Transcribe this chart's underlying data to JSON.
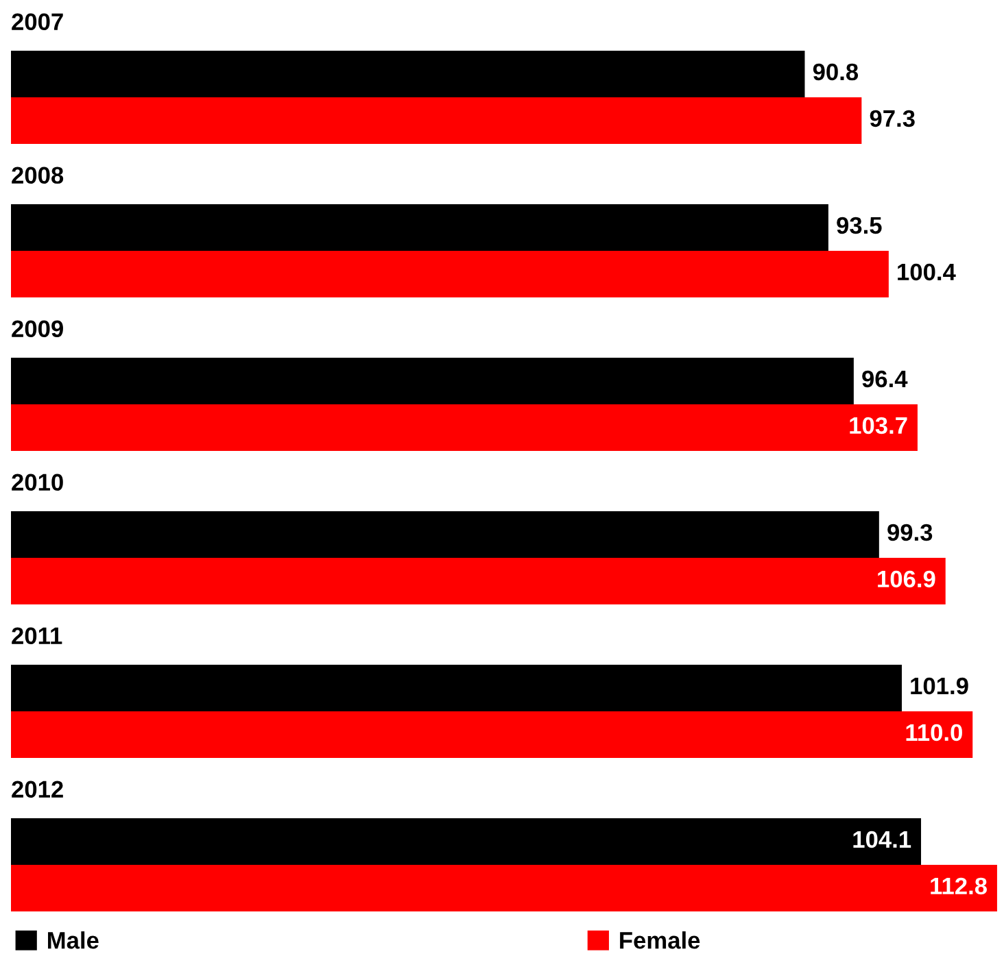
{
  "chart_data": {
    "type": "bar",
    "orientation": "horizontal",
    "categories": [
      "2007",
      "2008",
      "2009",
      "2010",
      "2011",
      "2012"
    ],
    "series": [
      {
        "name": "Male",
        "color": "#000000",
        "values": [
          90.8,
          93.5,
          96.4,
          99.3,
          101.9,
          104.1
        ],
        "value_labels": [
          "90.8",
          "93.5",
          "96.4",
          "99.3",
          "101.9",
          "104.1"
        ]
      },
      {
        "name": "Female",
        "color": "#ff0000",
        "values": [
          97.3,
          100.4,
          103.7,
          106.9,
          110.0,
          112.8
        ],
        "value_labels": [
          "97.3",
          "100.4",
          "103.7",
          "106.9",
          "110.0",
          "112.8"
        ]
      }
    ],
    "legend": "bottom"
  }
}
